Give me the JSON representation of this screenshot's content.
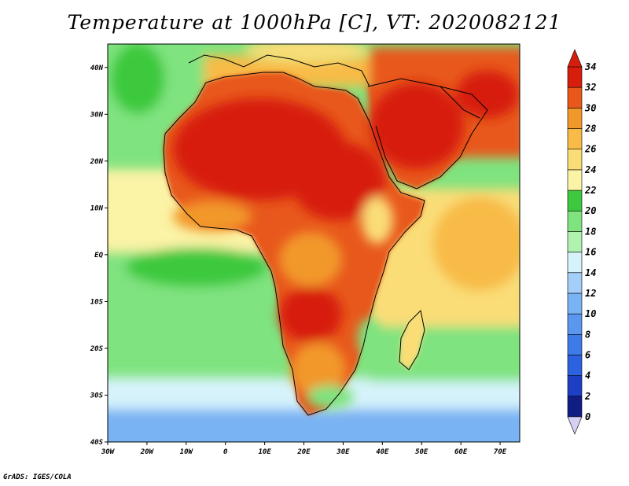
{
  "title": "Temperature at 1000hPa [C], VT: 2020082121",
  "footer": "GrADS: IGES/COLA",
  "map": {
    "region": "Africa and surroundings",
    "projection": "latlon",
    "lon_range": [
      -30,
      75
    ],
    "lat_range": [
      -40,
      45
    ],
    "x_ticks": [
      "30W",
      "20W",
      "10W",
      "0",
      "10E",
      "20E",
      "30E",
      "40E",
      "50E",
      "60E",
      "70E"
    ],
    "x_tick_values": [
      -30,
      -20,
      -10,
      0,
      10,
      20,
      30,
      40,
      50,
      60,
      70
    ],
    "y_ticks": [
      "40S",
      "30S",
      "20S",
      "10S",
      "EQ",
      "10N",
      "20N",
      "30N",
      "40N"
    ],
    "y_tick_values": [
      -40,
      -30,
      -20,
      -10,
      0,
      10,
      20,
      30,
      40
    ]
  },
  "colorbar": {
    "labels": [
      "0",
      "2",
      "4",
      "6",
      "8",
      "10",
      "12",
      "14",
      "16",
      "18",
      "20",
      "22",
      "24",
      "26",
      "28",
      "30",
      "32",
      "34"
    ],
    "bin_colors": [
      "#0f1d85",
      "#1c3fc4",
      "#2c62e0",
      "#3e7ae8",
      "#5b97ef",
      "#7ab3f3",
      "#a3cef7",
      "#d6f3fb",
      "#b0f2b0",
      "#7fe37f",
      "#3dc93d",
      "#fbf3a6",
      "#fadd77",
      "#f8bb47",
      "#f2982a",
      "#e8581a",
      "#d71d0c"
    ],
    "low_cap_color": "#d6d0f5",
    "high_cap_color": "#d71d0c"
  },
  "field_colors": {
    "ocean_cold": "#7ab3f3",
    "ocean_cool": "#d6f3fb",
    "ocean_green": "#3dc93d",
    "ocean_light_green": "#7fe37f",
    "ocean_yellow": "#fbf3a6",
    "ocean_tan": "#f8bb47",
    "land_hot": "#d71d0c",
    "land_warm": "#e8581a",
    "land_orange": "#f2982a",
    "land_mild": "#fadd77",
    "coast": "#000000"
  }
}
